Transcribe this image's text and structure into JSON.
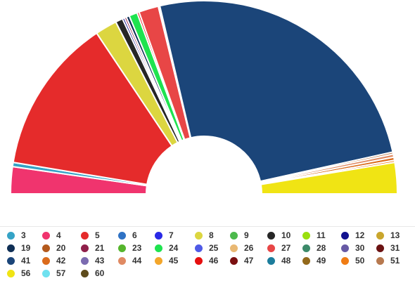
{
  "chart_data": {
    "type": "parliament",
    "title": "",
    "legend_position": "bottom",
    "seats_visible": false,
    "series": [
      {
        "name": "3",
        "color": "#35a3c6",
        "value": 4
      },
      {
        "name": "4",
        "color": "#f0346e",
        "value": 26
      },
      {
        "name": "5",
        "color": "#e52b2b",
        "value": 150
      },
      {
        "name": "6",
        "color": "#2f72c4",
        "value": 0.5
      },
      {
        "name": "7",
        "color": "#2a2ae6",
        "value": 0.5
      },
      {
        "name": "8",
        "color": "#dcd640",
        "value": 21
      },
      {
        "name": "9",
        "color": "#4cb94c",
        "value": 0.5
      },
      {
        "name": "10",
        "color": "#262626",
        "value": 7
      },
      {
        "name": "11",
        "color": "#9adf0e",
        "value": 0.5
      },
      {
        "name": "12",
        "color": "#12128f",
        "value": 2
      },
      {
        "name": "13",
        "color": "#c9a62d",
        "value": 0.5
      },
      {
        "name": "19",
        "color": "#0f2f55",
        "value": 3
      },
      {
        "name": "20",
        "color": "#b45a1d",
        "value": 0.5
      },
      {
        "name": "21",
        "color": "#8f1f4a",
        "value": 2
      },
      {
        "name": "23",
        "color": "#55b52c",
        "value": 0.5
      },
      {
        "name": "24",
        "color": "#1fe34f",
        "value": 8
      },
      {
        "name": "25",
        "color": "#4f5ae6",
        "value": 1
      },
      {
        "name": "26",
        "color": "#e9b873",
        "value": 0.5
      },
      {
        "name": "27",
        "color": "#e84646",
        "value": 19
      },
      {
        "name": "28",
        "color": "#3c8a6a",
        "value": 1
      },
      {
        "name": "30",
        "color": "#675aa5",
        "value": 0.5
      },
      {
        "name": "31",
        "color": "#6b1212",
        "value": 0.5
      },
      {
        "name": "41",
        "color": "#1b4579",
        "value": 290
      },
      {
        "name": "42",
        "color": "#db6b1c",
        "value": 3
      },
      {
        "name": "43",
        "color": "#7b6bb0",
        "value": 0.5
      },
      {
        "name": "44",
        "color": "#e08a63",
        "value": 3
      },
      {
        "name": "45",
        "color": "#f3a62b",
        "value": 0.5
      },
      {
        "name": "46",
        "color": "#e60f0f",
        "value": 2
      },
      {
        "name": "47",
        "color": "#7a0f10",
        "value": 0.5
      },
      {
        "name": "48",
        "color": "#1c7d9c",
        "value": 0.5
      },
      {
        "name": "49",
        "color": "#93691b",
        "value": 0.5
      },
      {
        "name": "50",
        "color": "#f07c14",
        "value": 2
      },
      {
        "name": "51",
        "color": "#b7794f",
        "value": 2
      },
      {
        "name": "56",
        "color": "#f0e414",
        "value": 30
      },
      {
        "name": "57",
        "color": "#6fe1ef",
        "value": 0.5
      },
      {
        "name": "60",
        "color": "#5e4b1c",
        "value": 0.5
      }
    ],
    "arc_order": [
      "4",
      "3",
      "5",
      "8",
      "10",
      "12",
      "21",
      "19",
      "24",
      "46",
      "27",
      "28",
      "60",
      "41",
      "51",
      "44",
      "42",
      "50",
      "56"
    ]
  }
}
